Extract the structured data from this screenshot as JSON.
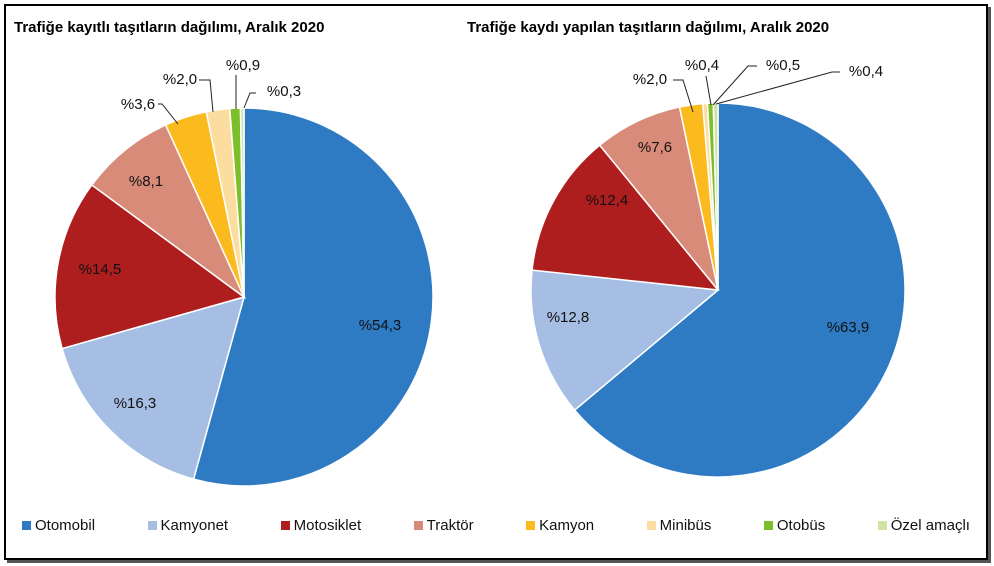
{
  "chart_data": [
    {
      "type": "pie",
      "title": "Trafiğe kayıtlı taşıtların dağılımı, Aralık 2020",
      "categories": [
        "Otomobil",
        "Kamyonet",
        "Motosiklet",
        "Traktör",
        "Kamyon",
        "Minibüs",
        "Otobüs",
        "Özel amaçlı"
      ],
      "values": [
        54.3,
        16.3,
        14.5,
        8.1,
        3.6,
        2.0,
        0.9,
        0.3
      ],
      "labels": [
        "%54,3",
        "%16,3",
        "%14,5",
        "%8,1",
        "%3,6",
        "%2,0",
        "%0,9",
        "%0,3"
      ]
    },
    {
      "type": "pie",
      "title": "Trafiğe kaydı yapılan taşıtların dağılımı, Aralık 2020",
      "categories": [
        "Otomobil",
        "Kamyonet",
        "Motosiklet",
        "Traktör",
        "Kamyon",
        "Minibüs",
        "Otobüs",
        "Özel amaçlı"
      ],
      "values": [
        63.9,
        12.8,
        12.4,
        7.6,
        2.0,
        0.4,
        0.5,
        0.4
      ],
      "labels": [
        "%63,9",
        "%12,8",
        "%12,4",
        "%7,6",
        "%2,0",
        "%0,4",
        "%0,5",
        "%0,4"
      ]
    }
  ],
  "legend": {
    "position": "bottom",
    "items": [
      {
        "label": "Otomobil",
        "color": "#2E7BC4"
      },
      {
        "label": "Kamyonet",
        "color": "#A6BEE3"
      },
      {
        "label": "Motosiklet",
        "color": "#AF1E1E"
      },
      {
        "label": "Traktör",
        "color": "#D98B7A"
      },
      {
        "label": "Kamyon",
        "color": "#FBBA1E"
      },
      {
        "label": "Minibüs",
        "color": "#FCDDA0"
      },
      {
        "label": "Otobüs",
        "color": "#7DBF2A"
      },
      {
        "label": "Özel amaçlı",
        "color": "#CFE3A4"
      }
    ]
  }
}
